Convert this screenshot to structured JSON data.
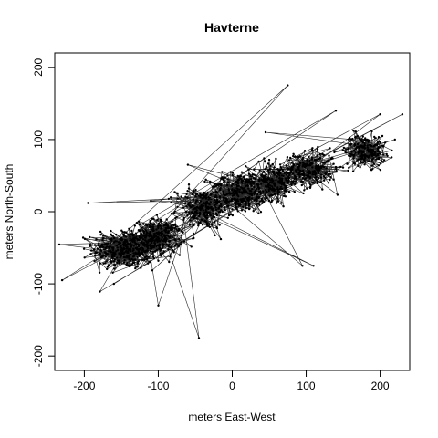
{
  "chart_data": {
    "type": "scatter",
    "title": "Havterne",
    "xlabel": "meters East-West",
    "ylabel": "meters North-South",
    "xlim": [
      -240,
      240
    ],
    "ylim": [
      -220,
      220
    ],
    "x_ticks": [
      -200,
      -100,
      0,
      100,
      200
    ],
    "y_ticks": [
      -200,
      -100,
      0,
      100,
      200
    ],
    "x_tick_labels": [
      "-200",
      "-100",
      "0",
      "100",
      "200"
    ],
    "y_tick_labels": [
      "-200",
      "-100",
      "0",
      "100",
      "200"
    ],
    "grid": false,
    "style": "points connected by track lines",
    "clusters": [
      {
        "center": [
          -145,
          -52
        ],
        "sd": [
          22,
          14
        ],
        "n": 360
      },
      {
        "center": [
          -100,
          -35
        ],
        "sd": [
          16,
          12
        ],
        "n": 280
      },
      {
        "center": [
          -40,
          4
        ],
        "sd": [
          18,
          14
        ],
        "n": 220
      },
      {
        "center": [
          10,
          26
        ],
        "sd": [
          20,
          14
        ],
        "n": 260
      },
      {
        "center": [
          55,
          42
        ],
        "sd": [
          18,
          13
        ],
        "n": 240
      },
      {
        "center": [
          105,
          58
        ],
        "sd": [
          18,
          12
        ],
        "n": 220
      },
      {
        "center": [
          180,
          85
        ],
        "sd": [
          14,
          11
        ],
        "n": 200
      }
    ],
    "outliers": [
      {
        "x": 75,
        "y": 175
      },
      {
        "x": 140,
        "y": 140
      },
      {
        "x": 230,
        "y": 135
      },
      {
        "x": -45,
        "y": -175
      },
      {
        "x": -100,
        "y": -130
      },
      {
        "x": -230,
        "y": -95
      },
      {
        "x": 110,
        "y": -75
      },
      {
        "x": 95,
        "y": -75
      },
      {
        "x": -195,
        "y": 12
      },
      {
        "x": -110,
        "y": 15
      },
      {
        "x": -60,
        "y": 65
      },
      {
        "x": 200,
        "y": 135
      },
      {
        "x": 220,
        "y": 100
      },
      {
        "x": -160,
        "y": -100
      },
      {
        "x": 45,
        "y": 110
      }
    ]
  }
}
